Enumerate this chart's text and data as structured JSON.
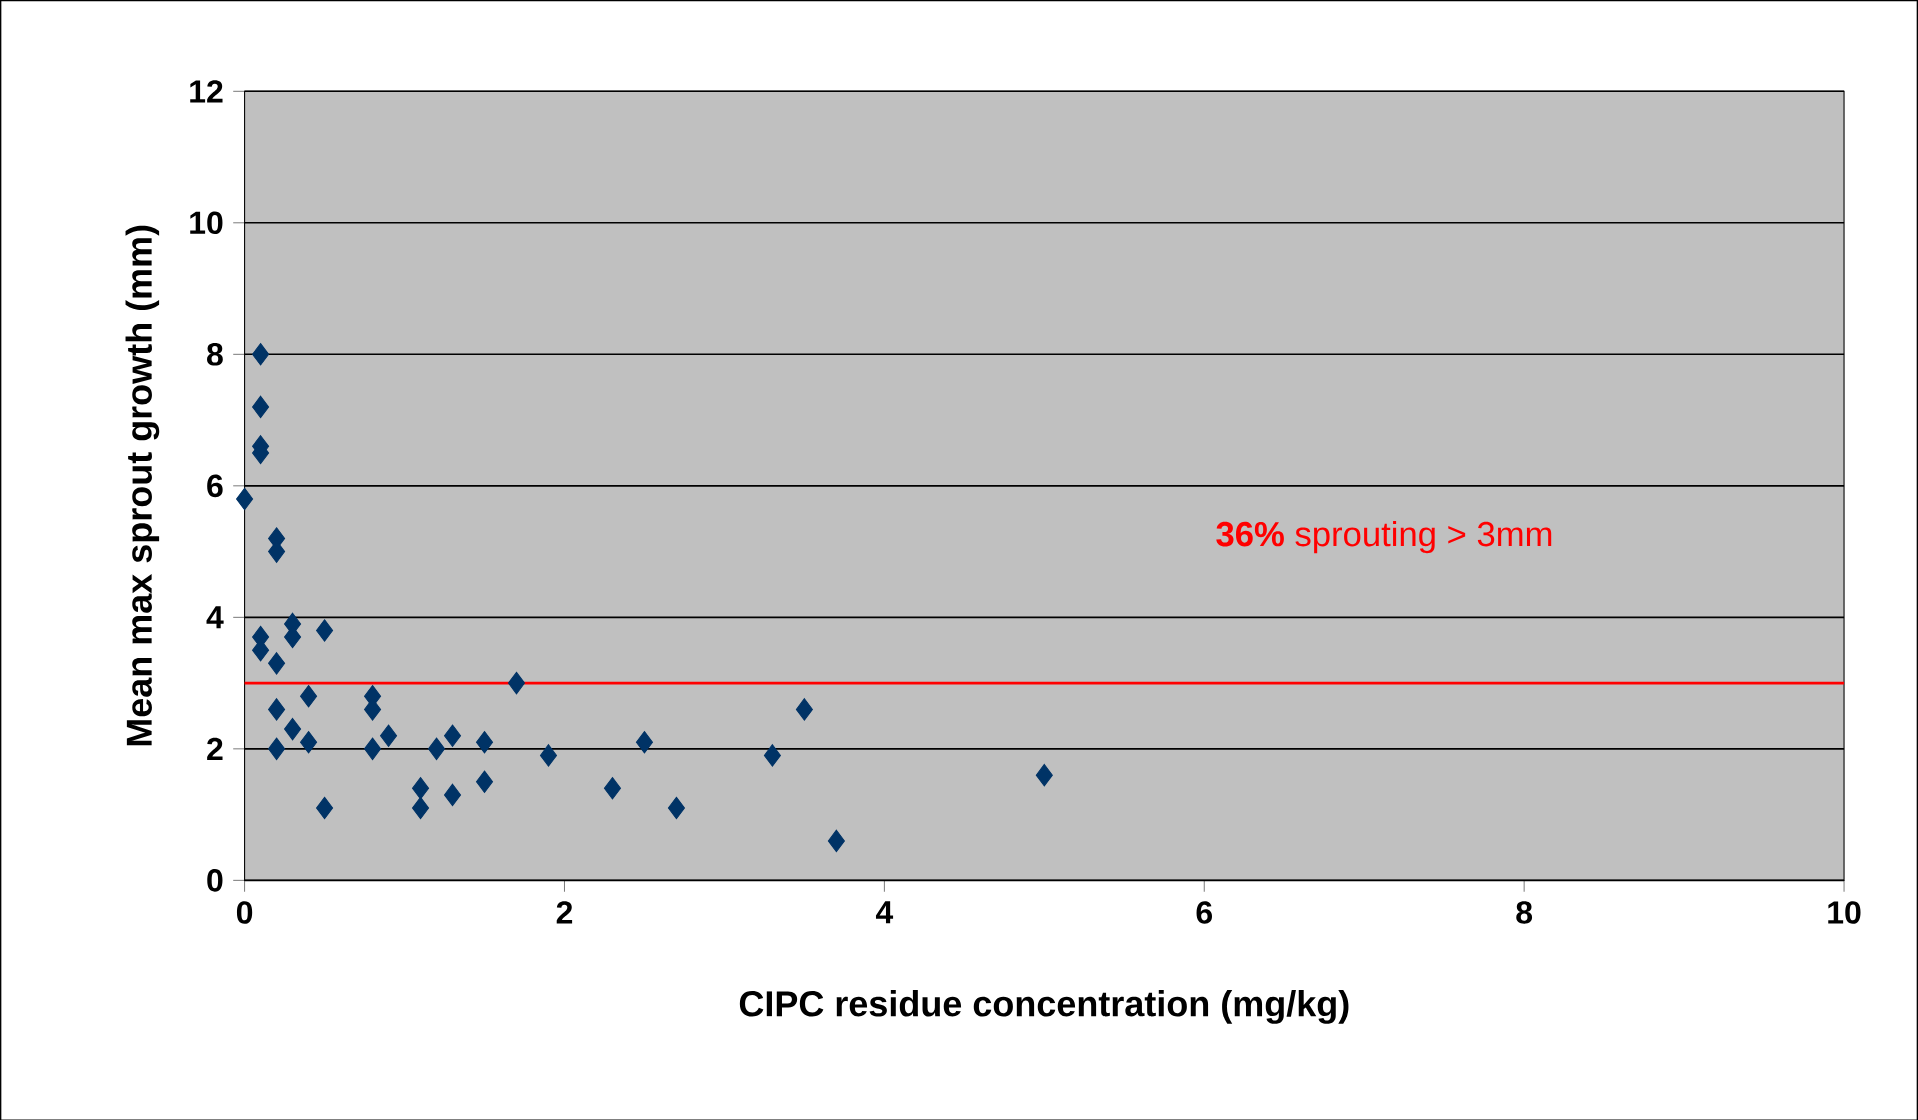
{
  "chart_data": {
    "type": "scatter",
    "xlabel": "CIPC residue concentration  (mg/kg)",
    "ylabel": "Mean max sprout growth (mm)",
    "xlim": [
      0,
      10
    ],
    "ylim": [
      0,
      12
    ],
    "xticks": [
      0,
      2,
      4,
      6,
      8,
      10
    ],
    "yticks": [
      0,
      2,
      4,
      6,
      8,
      10,
      12
    ],
    "grid": "y",
    "marker": "diamond",
    "ref_lines": [
      {
        "axis": "y",
        "value": 3,
        "color": "#ff0000"
      }
    ],
    "annotations": [
      "**36%** sprouting > 3mm"
    ],
    "series": [
      {
        "color": "#003366",
        "x": [
          0,
          0.1,
          0.1,
          0.1,
          0.1,
          0.2,
          0.2,
          0.1,
          0.1,
          0.2,
          0.3,
          0.3,
          0.5,
          0.4,
          0.2,
          0.3,
          0.2,
          0.4,
          0.5,
          0.8,
          0.8,
          0.8,
          0.9,
          1.1,
          1.1,
          1.2,
          1.3,
          1.3,
          1.5,
          1.5,
          1.7,
          1.9,
          2.3,
          2.5,
          2.7,
          3.3,
          3.5,
          3.7,
          5.0
        ],
        "values": [
          5.8,
          8.0,
          7.2,
          6.6,
          6.5,
          5.2,
          5.0,
          3.7,
          3.5,
          3.3,
          3.9,
          3.7,
          3.8,
          2.8,
          2.6,
          2.3,
          2.0,
          2.1,
          1.1,
          2.8,
          2.6,
          2.0,
          2.2,
          1.4,
          1.1,
          2.0,
          2.2,
          1.3,
          2.1,
          1.5,
          3.0,
          1.9,
          1.4,
          2.1,
          1.1,
          1.9,
          2.6,
          0.6,
          1.6
        ]
      }
    ]
  }
}
